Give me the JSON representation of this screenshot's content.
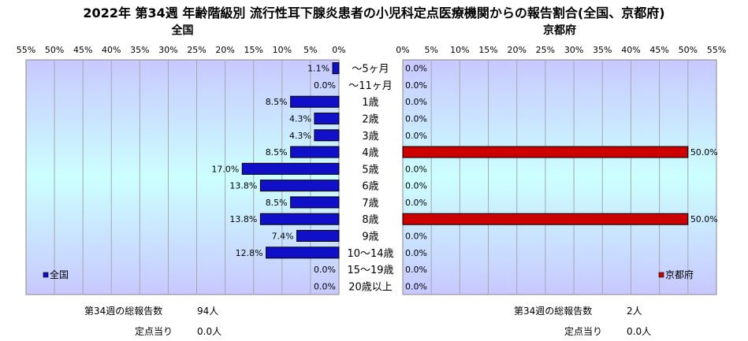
{
  "title": "2022年 第34週 年齢階級別 流行性耳下腺炎患者の小児科定点医療機関からの報告割合(全国、京都府)",
  "colors": {
    "zenkoku": "#1010c8",
    "kyoto": "#cc0000",
    "plot_bg_edge": "#c8c8ff",
    "plot_bg_center": "#ccffff"
  },
  "chart_data": [
    {
      "type": "bar",
      "orientation": "horizontal",
      "direction": "right-to-left",
      "title": "全国",
      "categories": [
        "～5ヶ月",
        "～11ヶ月",
        "1歳",
        "2歳",
        "3歳",
        "4歳",
        "5歳",
        "6歳",
        "7歳",
        "8歳",
        "9歳",
        "10～14歳",
        "15～19歳",
        "20歳以上"
      ],
      "series": [
        {
          "name": "全国",
          "values": [
            1.1,
            0.0,
            8.5,
            4.3,
            4.3,
            8.5,
            17.0,
            13.8,
            8.5,
            13.8,
            7.4,
            12.8,
            0.0,
            0.0
          ]
        }
      ],
      "data_labels": [
        "1.1%",
        "0.0%",
        "8.5%",
        "4.3%",
        "4.3%",
        "8.5%",
        "17.0%",
        "13.8%",
        "8.5%",
        "13.8%",
        "7.4%",
        "12.8%",
        "0.0%",
        "0.0%"
      ],
      "xlim": [
        0,
        55
      ],
      "ticks": [
        "0%",
        "5%",
        "10%",
        "15%",
        "20%",
        "25%",
        "30%",
        "35%",
        "40%",
        "45%",
        "50%",
        "55%"
      ],
      "legend": "bottom-left",
      "grid": true
    },
    {
      "type": "bar",
      "orientation": "horizontal",
      "direction": "left-to-right",
      "title": "京都府",
      "categories": [
        "～5ヶ月",
        "～11ヶ月",
        "1歳",
        "2歳",
        "3歳",
        "4歳",
        "5歳",
        "6歳",
        "7歳",
        "8歳",
        "9歳",
        "10～14歳",
        "15～19歳",
        "20歳以上"
      ],
      "series": [
        {
          "name": "京都府",
          "values": [
            0.0,
            0.0,
            0.0,
            0.0,
            0.0,
            50.0,
            0.0,
            0.0,
            0.0,
            50.0,
            0.0,
            0.0,
            0.0,
            0.0
          ]
        }
      ],
      "data_labels": [
        "0.0%",
        "0.0%",
        "0.0%",
        "0.0%",
        "0.0%",
        "50.0%",
        "0.0%",
        "0.0%",
        "0.0%",
        "50.0%",
        "0.0%",
        "0.0%",
        "0.0%",
        "0.0%"
      ],
      "xlim": [
        0,
        55
      ],
      "ticks": [
        "0%",
        "5%",
        "10%",
        "15%",
        "20%",
        "25%",
        "30%",
        "35%",
        "40%",
        "45%",
        "50%",
        "55%"
      ],
      "legend": "bottom-right",
      "grid": true
    }
  ],
  "summary": {
    "zenkoku": {
      "total_label": "第34週の総報告数",
      "total_value": "94人",
      "per_label": "定点当り",
      "per_value": "0.0人"
    },
    "kyoto": {
      "total_label": "第34週の総報告数",
      "total_value": "2人",
      "per_label": "定点当り",
      "per_value": "0.0人"
    }
  }
}
